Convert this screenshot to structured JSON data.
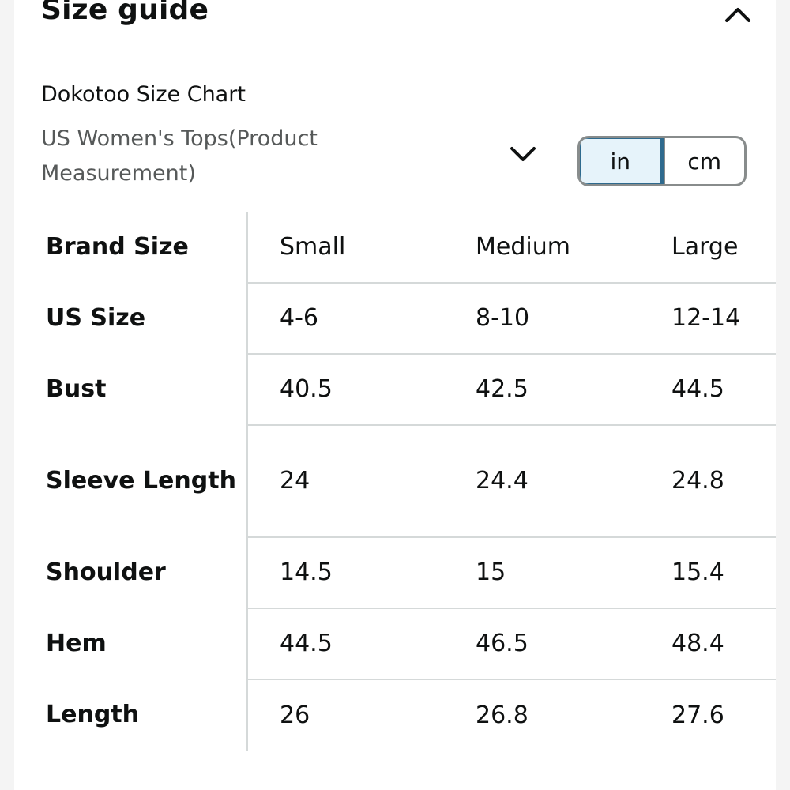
{
  "header": {
    "title": "Size guide",
    "collapse_icon": "chevron-up-icon"
  },
  "chart": {
    "title": "Dokotoo Size Chart",
    "category": "US Women's Tops(Product Measurement)",
    "dropdown_icon": "chevron-down-icon",
    "units": {
      "selected": "in",
      "options": [
        "in",
        "cm"
      ]
    }
  },
  "table": {
    "header_row": {
      "label": "Brand Size",
      "cells": [
        "Small",
        "Medium",
        "Large"
      ]
    },
    "rows": [
      {
        "label": "US Size",
        "cells": [
          "4-6",
          "8-10",
          "12-14"
        ]
      },
      {
        "label": "Bust",
        "cells": [
          "40.5",
          "42.5",
          "44.5"
        ]
      },
      {
        "label": "Sleeve Length",
        "cells": [
          "24",
          "24.4",
          "24.8"
        ]
      },
      {
        "label": "Shoulder",
        "cells": [
          "14.5",
          "15",
          "15.4"
        ]
      },
      {
        "label": "Hem",
        "cells": [
          "44.5",
          "46.5",
          "48.4"
        ]
      },
      {
        "label": "Length",
        "cells": [
          "26",
          "26.8",
          "27.6"
        ]
      }
    ]
  },
  "colors": {
    "text_primary": "#0f1111",
    "text_secondary": "#565959",
    "toggle_selected_bg": "#e6f3fa",
    "toggle_selected_border": "#2e6a8e",
    "divider": "#d5d9d9"
  }
}
